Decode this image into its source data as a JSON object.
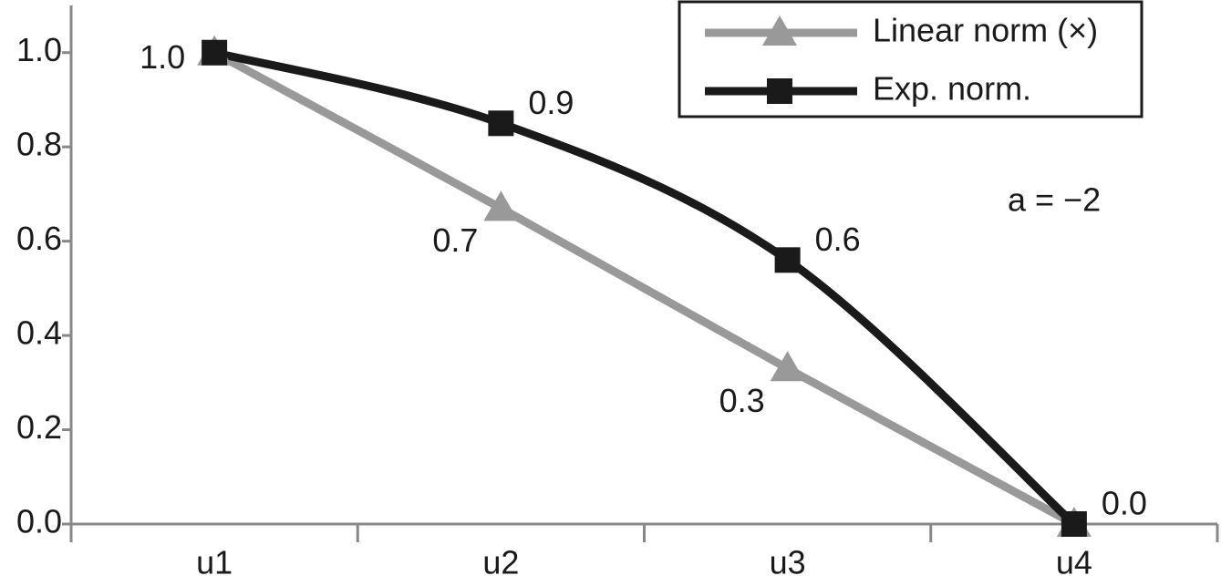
{
  "chart_data": {
    "type": "line",
    "categories": [
      "u1",
      "u2",
      "u3",
      "u4"
    ],
    "series": [
      {
        "name": "Linear norm (×)",
        "color": "#999999",
        "marker": "triangle",
        "values": [
          1.0,
          0.67,
          0.33,
          0.0
        ],
        "value_labels": [
          "1.0",
          "0.7",
          "0.3",
          null
        ]
      },
      {
        "name": "Exp. norm.",
        "color": "#1a1a1a",
        "marker": "square",
        "values": [
          1.0,
          0.85,
          0.56,
          0.0
        ],
        "value_labels": [
          null,
          "0.9",
          "0.6",
          "0.0"
        ]
      }
    ],
    "ylim": [
      0,
      1.1
    ],
    "yticks": [
      {
        "value": 0,
        "label": "0.0"
      },
      0.2,
      0.4,
      0.6,
      0.8,
      {
        "value": 1,
        "label": "1.0"
      }
    ],
    "annotation": "a = −2",
    "legend": "top-right",
    "grid": false
  }
}
